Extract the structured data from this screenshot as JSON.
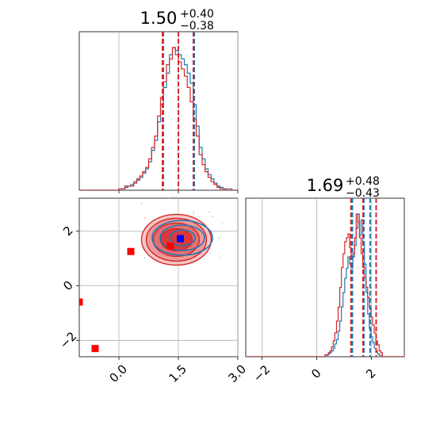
{
  "chart_data": [
    {
      "type": "histogram",
      "panel": "top-left",
      "title": {
        "value": "1.50",
        "plus": "+0.40",
        "minus": "−0.38"
      },
      "x_range": [
        -1.0,
        3.0
      ],
      "grid": true,
      "quantile_lines": {
        "blue": [
          1.12,
          1.5,
          1.9
        ],
        "red": [
          1.1,
          1.5,
          1.88
        ]
      },
      "series": [
        {
          "color": "#1f77b4",
          "bins_start": 0.0,
          "bin_width": 0.075,
          "counts": [
            1,
            1,
            2,
            3,
            4,
            6,
            7,
            9,
            12,
            15,
            20,
            28,
            35,
            48,
            60,
            72,
            82,
            95,
            100,
            98,
            95,
            92,
            88,
            82,
            75,
            60,
            45,
            30,
            22,
            15,
            11,
            8,
            5,
            3,
            2,
            1,
            1,
            1,
            0,
            0
          ]
        },
        {
          "color": "#d62728",
          "bins_start": 0.0,
          "bin_width": 0.075,
          "counts": [
            1,
            1,
            3,
            3,
            3,
            5,
            8,
            10,
            13,
            16,
            22,
            30,
            38,
            52,
            65,
            76,
            88,
            92,
            100,
            95,
            90,
            85,
            80,
            72,
            62,
            50,
            38,
            25,
            18,
            13,
            9,
            6,
            4,
            2,
            1,
            1,
            0,
            0,
            0,
            0
          ]
        }
      ]
    },
    {
      "type": "scatter",
      "panel": "bottom-left",
      "x_range": [
        -1.0,
        3.0
      ],
      "y_range": [
        -2.6,
        3.2
      ],
      "x_ticks": [
        "0.0",
        "1.5",
        "3.0"
      ],
      "y_ticks": [
        "−2",
        "0",
        "2"
      ],
      "grid": true,
      "contours": {
        "red_center": [
          1.45,
          1.68
        ],
        "blue_center": [
          1.6,
          1.75
        ]
      },
      "markers": [
        {
          "x": 1.55,
          "y": 1.72,
          "color": "#0000ff"
        },
        {
          "x": 1.3,
          "y": 1.45,
          "color": "#ff0000"
        },
        {
          "x": 0.3,
          "y": 1.25,
          "color": "#ff0000"
        },
        {
          "x": -1.0,
          "y": -0.6,
          "color": "#ff0000"
        },
        {
          "x": -0.6,
          "y": -2.3,
          "color": "#ff0000"
        }
      ]
    },
    {
      "type": "histogram",
      "panel": "bottom-right",
      "title": {
        "value": "1.69",
        "plus": "+0.48",
        "minus": "−0.43"
      },
      "x_range": [
        -2.6,
        3.2
      ],
      "x_ticks": [
        "−2",
        "0",
        "2"
      ],
      "grid": true,
      "quantile_lines": {
        "blue": [
          1.3,
          1.72,
          1.95
        ],
        "red": [
          1.25,
          1.69,
          2.17
        ]
      },
      "series": [
        {
          "color": "#1f77b4",
          "bins_start": 0.3,
          "bin_width": 0.06,
          "counts": [
            1,
            1,
            2,
            3,
            4,
            6,
            9,
            12,
            18,
            25,
            35,
            45,
            55,
            62,
            70,
            65,
            62,
            70,
            78,
            90,
            100,
            85,
            96,
            80,
            65,
            45,
            30,
            20,
            14,
            10,
            6,
            4,
            2,
            1,
            1
          ]
        },
        {
          "color": "#d62728",
          "bins_start": 0.3,
          "bin_width": 0.06,
          "counts": [
            1,
            1,
            2,
            3,
            5,
            8,
            12,
            18,
            25,
            35,
            45,
            52,
            58,
            60,
            62,
            55,
            50,
            52,
            60,
            72,
            68,
            60,
            52,
            45,
            40,
            35,
            30,
            25,
            20,
            16,
            12,
            8,
            6,
            3,
            2
          ]
        }
      ]
    }
  ]
}
